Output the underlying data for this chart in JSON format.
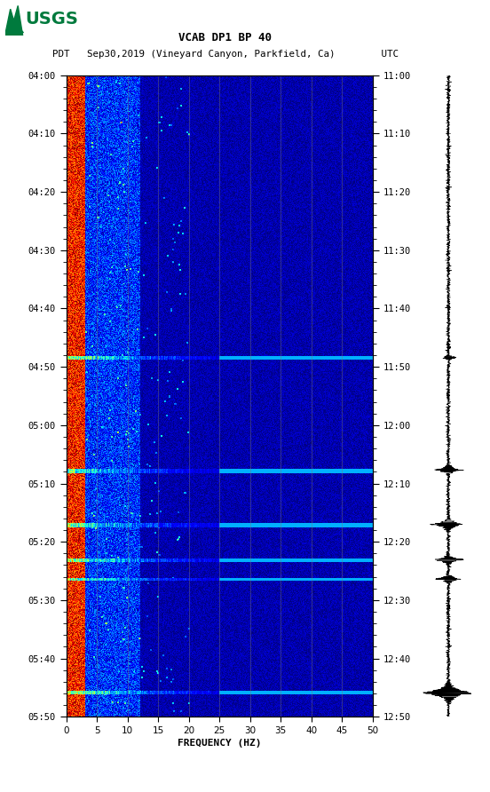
{
  "title_line1": "VCAB DP1 BP 40",
  "title_line2": "PDT   Sep30,2019 (Vineyard Canyon, Parkfield, Ca)        UTC",
  "xlabel": "FREQUENCY (HZ)",
  "freq_min": 0,
  "freq_max": 50,
  "freq_ticks": [
    0,
    5,
    10,
    15,
    20,
    25,
    30,
    35,
    40,
    45,
    50
  ],
  "time_labels_left": [
    "04:00",
    "04:10",
    "04:20",
    "04:30",
    "04:40",
    "04:50",
    "05:00",
    "05:10",
    "05:20",
    "05:30",
    "05:40",
    "05:50"
  ],
  "time_labels_right": [
    "11:00",
    "11:10",
    "11:20",
    "11:30",
    "11:40",
    "11:50",
    "12:00",
    "12:10",
    "12:20",
    "12:30",
    "12:40",
    "12:50"
  ],
  "n_time_steps": 720,
  "n_freq_steps": 500,
  "background_color": "#ffffff",
  "colormap": "jet",
  "usgs_logo_color": "#007a3d",
  "vertical_grid_lines_freq": [
    5,
    10,
    15,
    20,
    25,
    30,
    35,
    40,
    45
  ],
  "seismogram_color": "#000000",
  "event_rows": [
    [
      0.44,
      0.445,
      0.88
    ],
    [
      0.615,
      0.622,
      0.72
    ],
    [
      0.7,
      0.706,
      0.82
    ],
    [
      0.755,
      0.76,
      0.9
    ],
    [
      0.785,
      0.79,
      0.85
    ],
    [
      0.96,
      0.966,
      0.95
    ]
  ]
}
